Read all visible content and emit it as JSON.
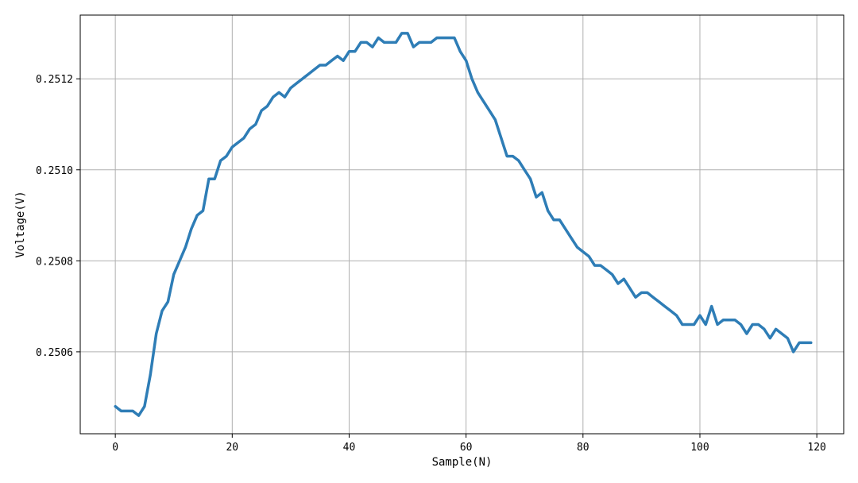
{
  "chart_data": {
    "type": "line",
    "title": "",
    "xlabel": "Sample(N)",
    "ylabel": "Voltage(V)",
    "xlim": [
      -6,
      124.6
    ],
    "ylim": [
      0.25042,
      0.25134
    ],
    "xticks": [
      0,
      20,
      40,
      60,
      80,
      100,
      120
    ],
    "xtick_labels": [
      "0",
      "20",
      "40",
      "60",
      "80",
      "100",
      "120"
    ],
    "yticks": [
      0.2506,
      0.2508,
      0.251,
      0.2512
    ],
    "ytick_labels": [
      "0.2506",
      "0.2508",
      "0.2510",
      "0.2512"
    ],
    "grid": true,
    "line_color": "#2e7db6",
    "series": [
      {
        "x": [
          0,
          1,
          2,
          3,
          4,
          5,
          6,
          7,
          8,
          9,
          10,
          11,
          12,
          13,
          14,
          15,
          16,
          17,
          18,
          19,
          20,
          21,
          22,
          23,
          24,
          25,
          26,
          27,
          28,
          29,
          30,
          31,
          32,
          33,
          34,
          35,
          36,
          37,
          38,
          39,
          40,
          41,
          42,
          43,
          44,
          45,
          46,
          47,
          48,
          49,
          50,
          51,
          52,
          53,
          54,
          55,
          56,
          57,
          58,
          59,
          60,
          61,
          62,
          63,
          64,
          65,
          66,
          67,
          68,
          69,
          70,
          71,
          72,
          73,
          74,
          75,
          76,
          77,
          78,
          79,
          80,
          81,
          82,
          83,
          84,
          85,
          86,
          87,
          88,
          89,
          90,
          91,
          92,
          93,
          94,
          95,
          96,
          97,
          98,
          99,
          100,
          101,
          102,
          103,
          104,
          105,
          106,
          107,
          108,
          109,
          110,
          111,
          112,
          113,
          114,
          115,
          116,
          117,
          118,
          119
        ],
        "values": [
          0.25048,
          0.25047,
          0.25047,
          0.25047,
          0.25046,
          0.25048,
          0.25055,
          0.25064,
          0.25069,
          0.25071,
          0.25077,
          0.2508,
          0.25083,
          0.25087,
          0.2509,
          0.25091,
          0.25098,
          0.25098,
          0.25102,
          0.25103,
          0.25105,
          0.25106,
          0.25107,
          0.25109,
          0.2511,
          0.25113,
          0.25114,
          0.25116,
          0.25117,
          0.25116,
          0.25118,
          0.25119,
          0.2512,
          0.25121,
          0.25122,
          0.25123,
          0.25123,
          0.25124,
          0.25125,
          0.25124,
          0.25126,
          0.25126,
          0.25128,
          0.25128,
          0.25127,
          0.25129,
          0.25128,
          0.25128,
          0.25128,
          0.2513,
          0.2513,
          0.25127,
          0.25128,
          0.25128,
          0.25128,
          0.25129,
          0.25129,
          0.25129,
          0.25129,
          0.25126,
          0.25124,
          0.2512,
          0.25117,
          0.25115,
          0.25113,
          0.25111,
          0.25107,
          0.25103,
          0.25103,
          0.25102,
          0.251,
          0.25098,
          0.25094,
          0.25095,
          0.25091,
          0.25089,
          0.25089,
          0.25087,
          0.25085,
          0.25083,
          0.25082,
          0.25081,
          0.25079,
          0.25079,
          0.25078,
          0.25077,
          0.25075,
          0.25076,
          0.25074,
          0.25072,
          0.25073,
          0.25073,
          0.25072,
          0.25071,
          0.2507,
          0.25069,
          0.25068,
          0.25066,
          0.25066,
          0.25066,
          0.25068,
          0.25066,
          0.2507,
          0.25066,
          0.25067,
          0.25067,
          0.25067,
          0.25066,
          0.25064,
          0.25066,
          0.25066,
          0.25065,
          0.25063,
          0.25065,
          0.25064,
          0.25063,
          0.2506,
          0.25062,
          0.25062,
          0.25062
        ]
      }
    ]
  }
}
